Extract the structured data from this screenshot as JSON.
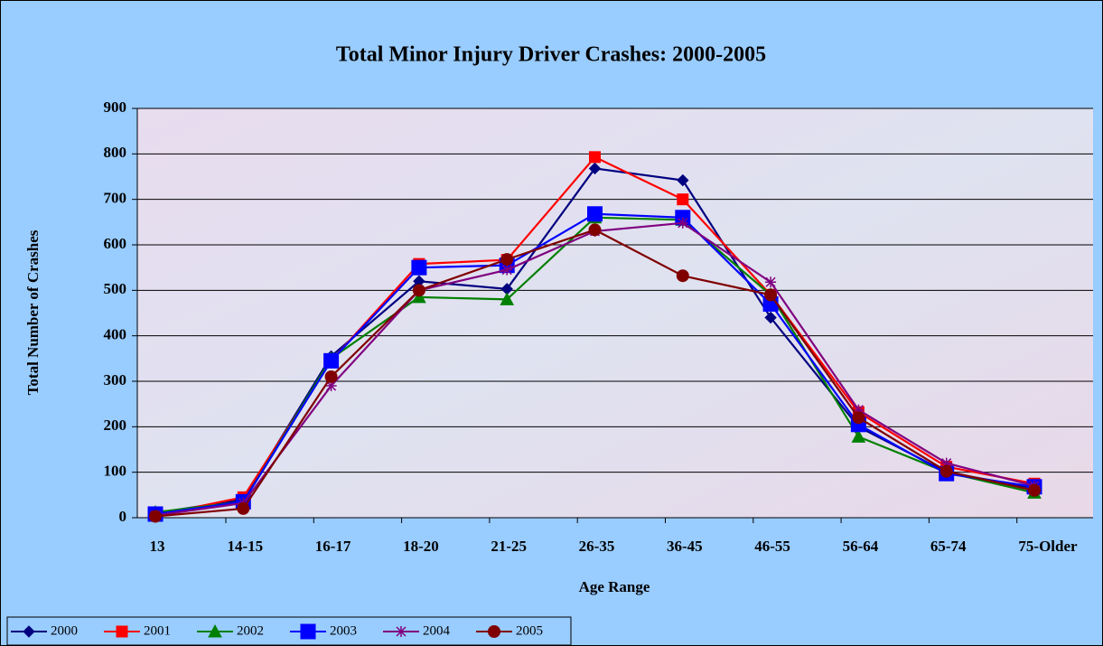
{
  "chart_data": {
    "type": "line",
    "title": "Total Minor Injury Driver Crashes: 2000-2005",
    "x_label": "Age Range",
    "y_label": "Total Number of Crashes",
    "categories": [
      "13",
      "14-15",
      "16-17",
      "18-20",
      "21-25",
      "26-35",
      "36-45",
      "46-55",
      "56-64",
      "65-74",
      "75-Older"
    ],
    "series": [
      {
        "name": "2000",
        "color": "#000080",
        "marker": "diamond",
        "values": [
          10,
          40,
          355,
          520,
          503,
          768,
          742,
          440,
          200,
          100,
          65
        ]
      },
      {
        "name": "2001",
        "color": "#ff0000",
        "marker": "square",
        "values": [
          5,
          45,
          345,
          558,
          567,
          793,
          700,
          490,
          232,
          112,
          75
        ]
      },
      {
        "name": "2002",
        "color": "#008000",
        "marker": "triangle",
        "values": [
          12,
          35,
          350,
          485,
          480,
          660,
          655,
          490,
          178,
          100,
          55
        ]
      },
      {
        "name": "2003",
        "color": "#0000ff",
        "marker": "square-large",
        "values": [
          8,
          35,
          345,
          550,
          555,
          668,
          660,
          470,
          205,
          97,
          68
        ]
      },
      {
        "name": "2004",
        "color": "#800080",
        "marker": "star",
        "values": [
          5,
          32,
          290,
          500,
          545,
          630,
          648,
          518,
          237,
          120,
          70
        ]
      },
      {
        "name": "2005",
        "color": "#800000",
        "marker": "circle",
        "values": [
          3,
          20,
          310,
          500,
          568,
          633,
          532,
          490,
          220,
          102,
          60
        ]
      }
    ],
    "ylim": [
      0,
      900
    ],
    "yticks": [
      0,
      100,
      200,
      300,
      400,
      500,
      600,
      700,
      800,
      900
    ],
    "grid": true,
    "legend": "bottom-left"
  }
}
